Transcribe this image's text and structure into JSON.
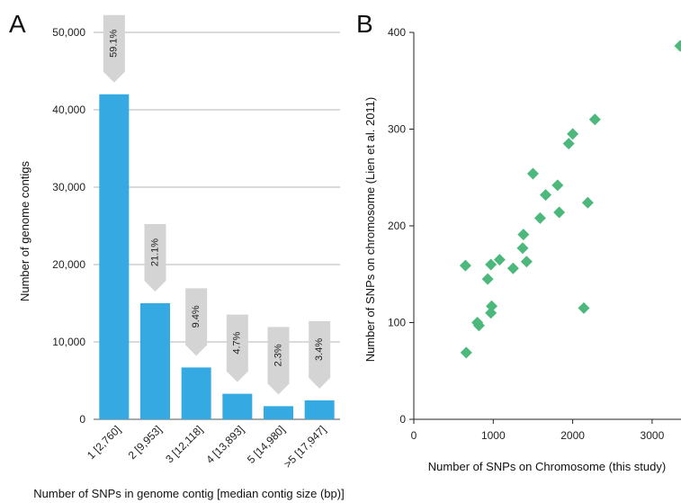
{
  "panels": {
    "a": "A",
    "b": "B"
  },
  "chart_data": [
    {
      "type": "bar",
      "panel": "A",
      "categories": [
        "1 [2,760]",
        "2 [9,953]",
        "3 [12,118]",
        "4 [13,893]",
        "5 [14,980]",
        ">5 [17,947]"
      ],
      "values": [
        42000,
        15000,
        6700,
        3300,
        1700,
        2450
      ],
      "percent_labels": [
        "59.1%",
        "21.1%",
        "9.4%",
        "4.7%",
        "2.3%",
        "3.4%"
      ],
      "xlabel": "Number of SNPs in genome contig [median contig size (bp)]",
      "ylabel": "Number of genome contigs",
      "ylim": [
        0,
        50000
      ],
      "yticks": [
        0,
        10000,
        20000,
        30000,
        40000,
        50000
      ],
      "ytick_labels": [
        "0",
        "10,000",
        "20,000",
        "30,000",
        "40,000",
        "50,000"
      ],
      "grid": "horizontal",
      "colors": {
        "bar": "#35a9e2",
        "callout": "#d4d4d4"
      }
    },
    {
      "type": "scatter",
      "panel": "B",
      "xlabel": "Number of SNPs on Chromosome (this study)",
      "ylabel": "Number of SNPs on chromosome (Lien et al. 2011)",
      "xlim": [
        0,
        3400
      ],
      "ylim": [
        0,
        400
      ],
      "xticks": [
        0,
        1000,
        2000,
        3000
      ],
      "xtick_labels": [
        "0",
        "1000",
        "2000",
        "3000"
      ],
      "yticks": [
        0,
        100,
        200,
        300,
        400
      ],
      "ytick_labels": [
        "0",
        "100",
        "200",
        "300",
        "400"
      ],
      "marker": "diamond",
      "colors": {
        "marker": "#4cb87c"
      },
      "points": [
        {
          "x": 650,
          "y": 159
        },
        {
          "x": 660,
          "y": 69
        },
        {
          "x": 800,
          "y": 100
        },
        {
          "x": 820,
          "y": 97
        },
        {
          "x": 930,
          "y": 145
        },
        {
          "x": 970,
          "y": 160
        },
        {
          "x": 970,
          "y": 110
        },
        {
          "x": 980,
          "y": 117
        },
        {
          "x": 1080,
          "y": 165
        },
        {
          "x": 1250,
          "y": 156
        },
        {
          "x": 1380,
          "y": 191
        },
        {
          "x": 1370,
          "y": 177
        },
        {
          "x": 1420,
          "y": 163
        },
        {
          "x": 1500,
          "y": 254
        },
        {
          "x": 1590,
          "y": 208
        },
        {
          "x": 1660,
          "y": 232
        },
        {
          "x": 1810,
          "y": 242
        },
        {
          "x": 1830,
          "y": 214
        },
        {
          "x": 1950,
          "y": 285
        },
        {
          "x": 2000,
          "y": 295
        },
        {
          "x": 2140,
          "y": 115
        },
        {
          "x": 2190,
          "y": 224
        },
        {
          "x": 2280,
          "y": 310
        },
        {
          "x": 3400,
          "y": 386
        }
      ]
    }
  ]
}
